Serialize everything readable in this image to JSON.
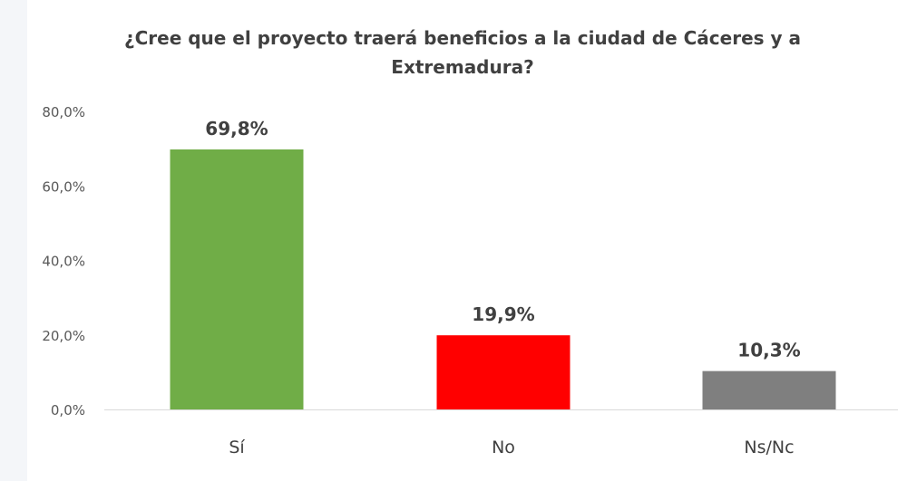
{
  "chart_data": {
    "type": "bar",
    "title": "¿Cree que el proyecto traerá beneficios a la ciudad de Cáceres y a Extremadura?",
    "categories": [
      "Sí",
      "No",
      "Ns/Nc"
    ],
    "values": [
      69.8,
      19.9,
      10.3
    ],
    "data_labels": [
      "69,8%",
      "19,9%",
      "10,3%"
    ],
    "colors": [
      "#70ad47",
      "#ff0000",
      "#7f7f7f"
    ],
    "yticks": [
      "0,0%",
      "20,0%",
      "40,0%",
      "60,0%",
      "80,0%"
    ],
    "ytick_values": [
      0,
      20,
      40,
      60,
      80
    ],
    "ylim": [
      0,
      80
    ],
    "grid": false,
    "legend": "none"
  }
}
